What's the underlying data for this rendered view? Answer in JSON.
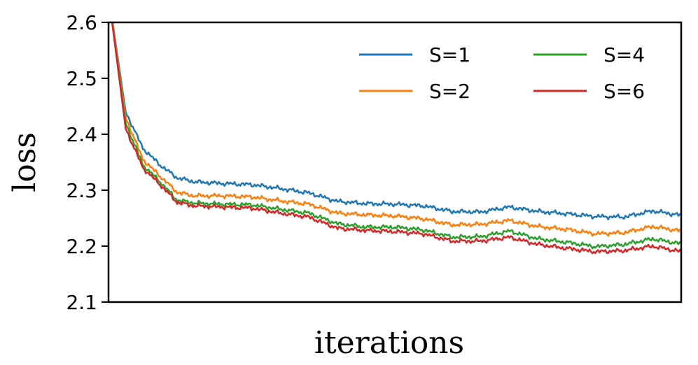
{
  "chart_data": {
    "type": "line",
    "title": "",
    "xlabel": "iterations",
    "ylabel": "loss",
    "ylim": [
      2.1,
      2.6
    ],
    "xlim": [
      0,
      1
    ],
    "yticks": [
      "2.1",
      "2.2",
      "2.3",
      "2.4",
      "2.5",
      "2.6"
    ],
    "xticks": [],
    "grid": false,
    "legend": {
      "position": "top-right",
      "columns": 2
    },
    "x": [
      0.0,
      0.03,
      0.06,
      0.09,
      0.12,
      0.15,
      0.2,
      0.25,
      0.3,
      0.35,
      0.4,
      0.45,
      0.5,
      0.55,
      0.6,
      0.65,
      0.7,
      0.75,
      0.8,
      0.85,
      0.9,
      0.95,
      1.0
    ],
    "series": [
      {
        "name": "S=1",
        "color": "#1f77b4",
        "values": [
          2.65,
          2.44,
          2.375,
          2.345,
          2.322,
          2.315,
          2.312,
          2.31,
          2.303,
          2.295,
          2.28,
          2.276,
          2.275,
          2.272,
          2.262,
          2.261,
          2.27,
          2.262,
          2.258,
          2.253,
          2.252,
          2.263,
          2.255
        ]
      },
      {
        "name": "S=2",
        "color": "#ff7f0e",
        "values": [
          2.65,
          2.43,
          2.355,
          2.325,
          2.296,
          2.29,
          2.29,
          2.288,
          2.281,
          2.275,
          2.259,
          2.256,
          2.254,
          2.249,
          2.238,
          2.239,
          2.246,
          2.235,
          2.23,
          2.222,
          2.224,
          2.235,
          2.227
        ]
      },
      {
        "name": "S=4",
        "color": "#2ca02c",
        "values": [
          2.65,
          2.42,
          2.345,
          2.315,
          2.282,
          2.277,
          2.275,
          2.274,
          2.266,
          2.259,
          2.24,
          2.234,
          2.234,
          2.229,
          2.216,
          2.217,
          2.227,
          2.213,
          2.207,
          2.199,
          2.203,
          2.213,
          2.204
        ]
      },
      {
        "name": "S=6",
        "color": "#d62728",
        "values": [
          2.65,
          2.41,
          2.34,
          2.31,
          2.278,
          2.272,
          2.27,
          2.268,
          2.259,
          2.252,
          2.232,
          2.228,
          2.226,
          2.222,
          2.209,
          2.209,
          2.216,
          2.203,
          2.196,
          2.19,
          2.192,
          2.2,
          2.19
        ]
      }
    ]
  }
}
